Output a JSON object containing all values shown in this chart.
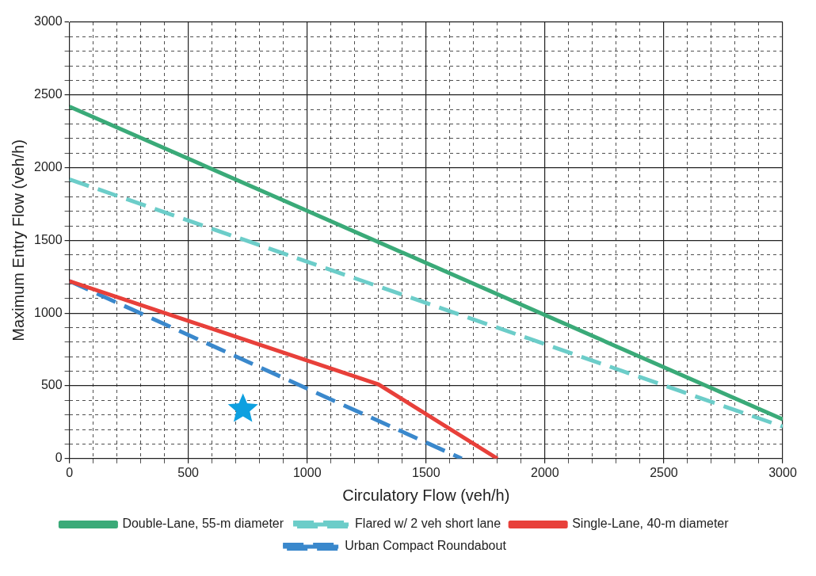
{
  "chart_data": {
    "type": "line",
    "xlabel": "Circulatory Flow (veh/h)",
    "ylabel": "Maximum Entry Flow (veh/h)",
    "xlim": [
      0,
      3000
    ],
    "ylim": [
      0,
      3000
    ],
    "xticks": [
      0,
      {
        "value": 100,
        "label": null
      },
      {
        "value": 200,
        "label": null
      },
      {
        "value": 300,
        "label": null
      },
      {
        "value": 400,
        "label": null
      },
      500,
      {
        "value": 600,
        "label": null
      },
      {
        "value": 700,
        "label": null
      },
      {
        "value": 800,
        "label": null
      },
      {
        "value": 900,
        "label": null
      },
      1000,
      {
        "value": 1100,
        "label": null
      },
      {
        "value": 1200,
        "label": null
      },
      {
        "value": 1300,
        "label": null
      },
      {
        "value": 1400,
        "label": null
      },
      1500,
      {
        "value": 1600,
        "label": null
      },
      {
        "value": 1700,
        "label": null
      },
      {
        "value": 1800,
        "label": null
      },
      {
        "value": 1900,
        "label": null
      },
      2000,
      {
        "value": 2100,
        "label": null
      },
      {
        "value": 2200,
        "label": null
      },
      {
        "value": 2300,
        "label": null
      },
      {
        "value": 2400,
        "label": null
      },
      2500,
      {
        "value": 2600,
        "label": null
      },
      {
        "value": 2700,
        "label": null
      },
      {
        "value": 2800,
        "label": null
      },
      {
        "value": 2900,
        "label": null
      },
      3000
    ],
    "yticks": [
      0,
      {
        "value": 100,
        "label": null
      },
      {
        "value": 200,
        "label": null
      },
      {
        "value": 300,
        "label": null
      },
      {
        "value": 400,
        "label": null
      },
      500,
      {
        "value": 600,
        "label": null
      },
      {
        "value": 700,
        "label": null
      },
      {
        "value": 800,
        "label": null
      },
      {
        "value": 900,
        "label": null
      },
      1000,
      {
        "value": 1100,
        "label": null
      },
      {
        "value": 1200,
        "label": null
      },
      {
        "value": 1300,
        "label": null
      },
      {
        "value": 1400,
        "label": null
      },
      1500,
      {
        "value": 1600,
        "label": null
      },
      {
        "value": 1700,
        "label": null
      },
      {
        "value": 1800,
        "label": null
      },
      {
        "value": 1900,
        "label": null
      },
      2000,
      {
        "value": 2100,
        "label": null
      },
      {
        "value": 2200,
        "label": null
      },
      {
        "value": 2300,
        "label": null
      },
      {
        "value": 2400,
        "label": null
      },
      2500,
      {
        "value": 2600,
        "label": null
      },
      {
        "value": 2700,
        "label": null
      },
      {
        "value": 2800,
        "label": null
      },
      {
        "value": 2900,
        "label": null
      },
      3000
    ],
    "grid": true,
    "legend": "bottom",
    "marker": "none",
    "series": [
      {
        "name": "Double-Lane, 55-m diameter",
        "color": "#3aaa78",
        "line_style": "solid",
        "x": [
          0,
          3000
        ],
        "values": [
          2420,
          270
        ]
      },
      {
        "name": "Flared w/ 2 veh short lane",
        "color": "#6ccdc9",
        "line_style": "dashed",
        "x": [
          0,
          3000
        ],
        "values": [
          1920,
          220
        ]
      },
      {
        "name": "Single-Lane, 40-m diameter",
        "color": "#e8403a",
        "line_style": "solid",
        "x": [
          0,
          1300,
          1800
        ],
        "values": [
          1220,
          510,
          0
        ]
      },
      {
        "name": "Urban Compact Roundabout",
        "color": "#3a88cc",
        "line_style": "dashed",
        "x": [
          0,
          1650
        ],
        "values": [
          1220,
          0
        ]
      },
      {
        "type": "scatter",
        "color": "#0ea0e0",
        "marker": "star",
        "x": [
          730
        ],
        "values": [
          340
        ]
      }
    ]
  }
}
